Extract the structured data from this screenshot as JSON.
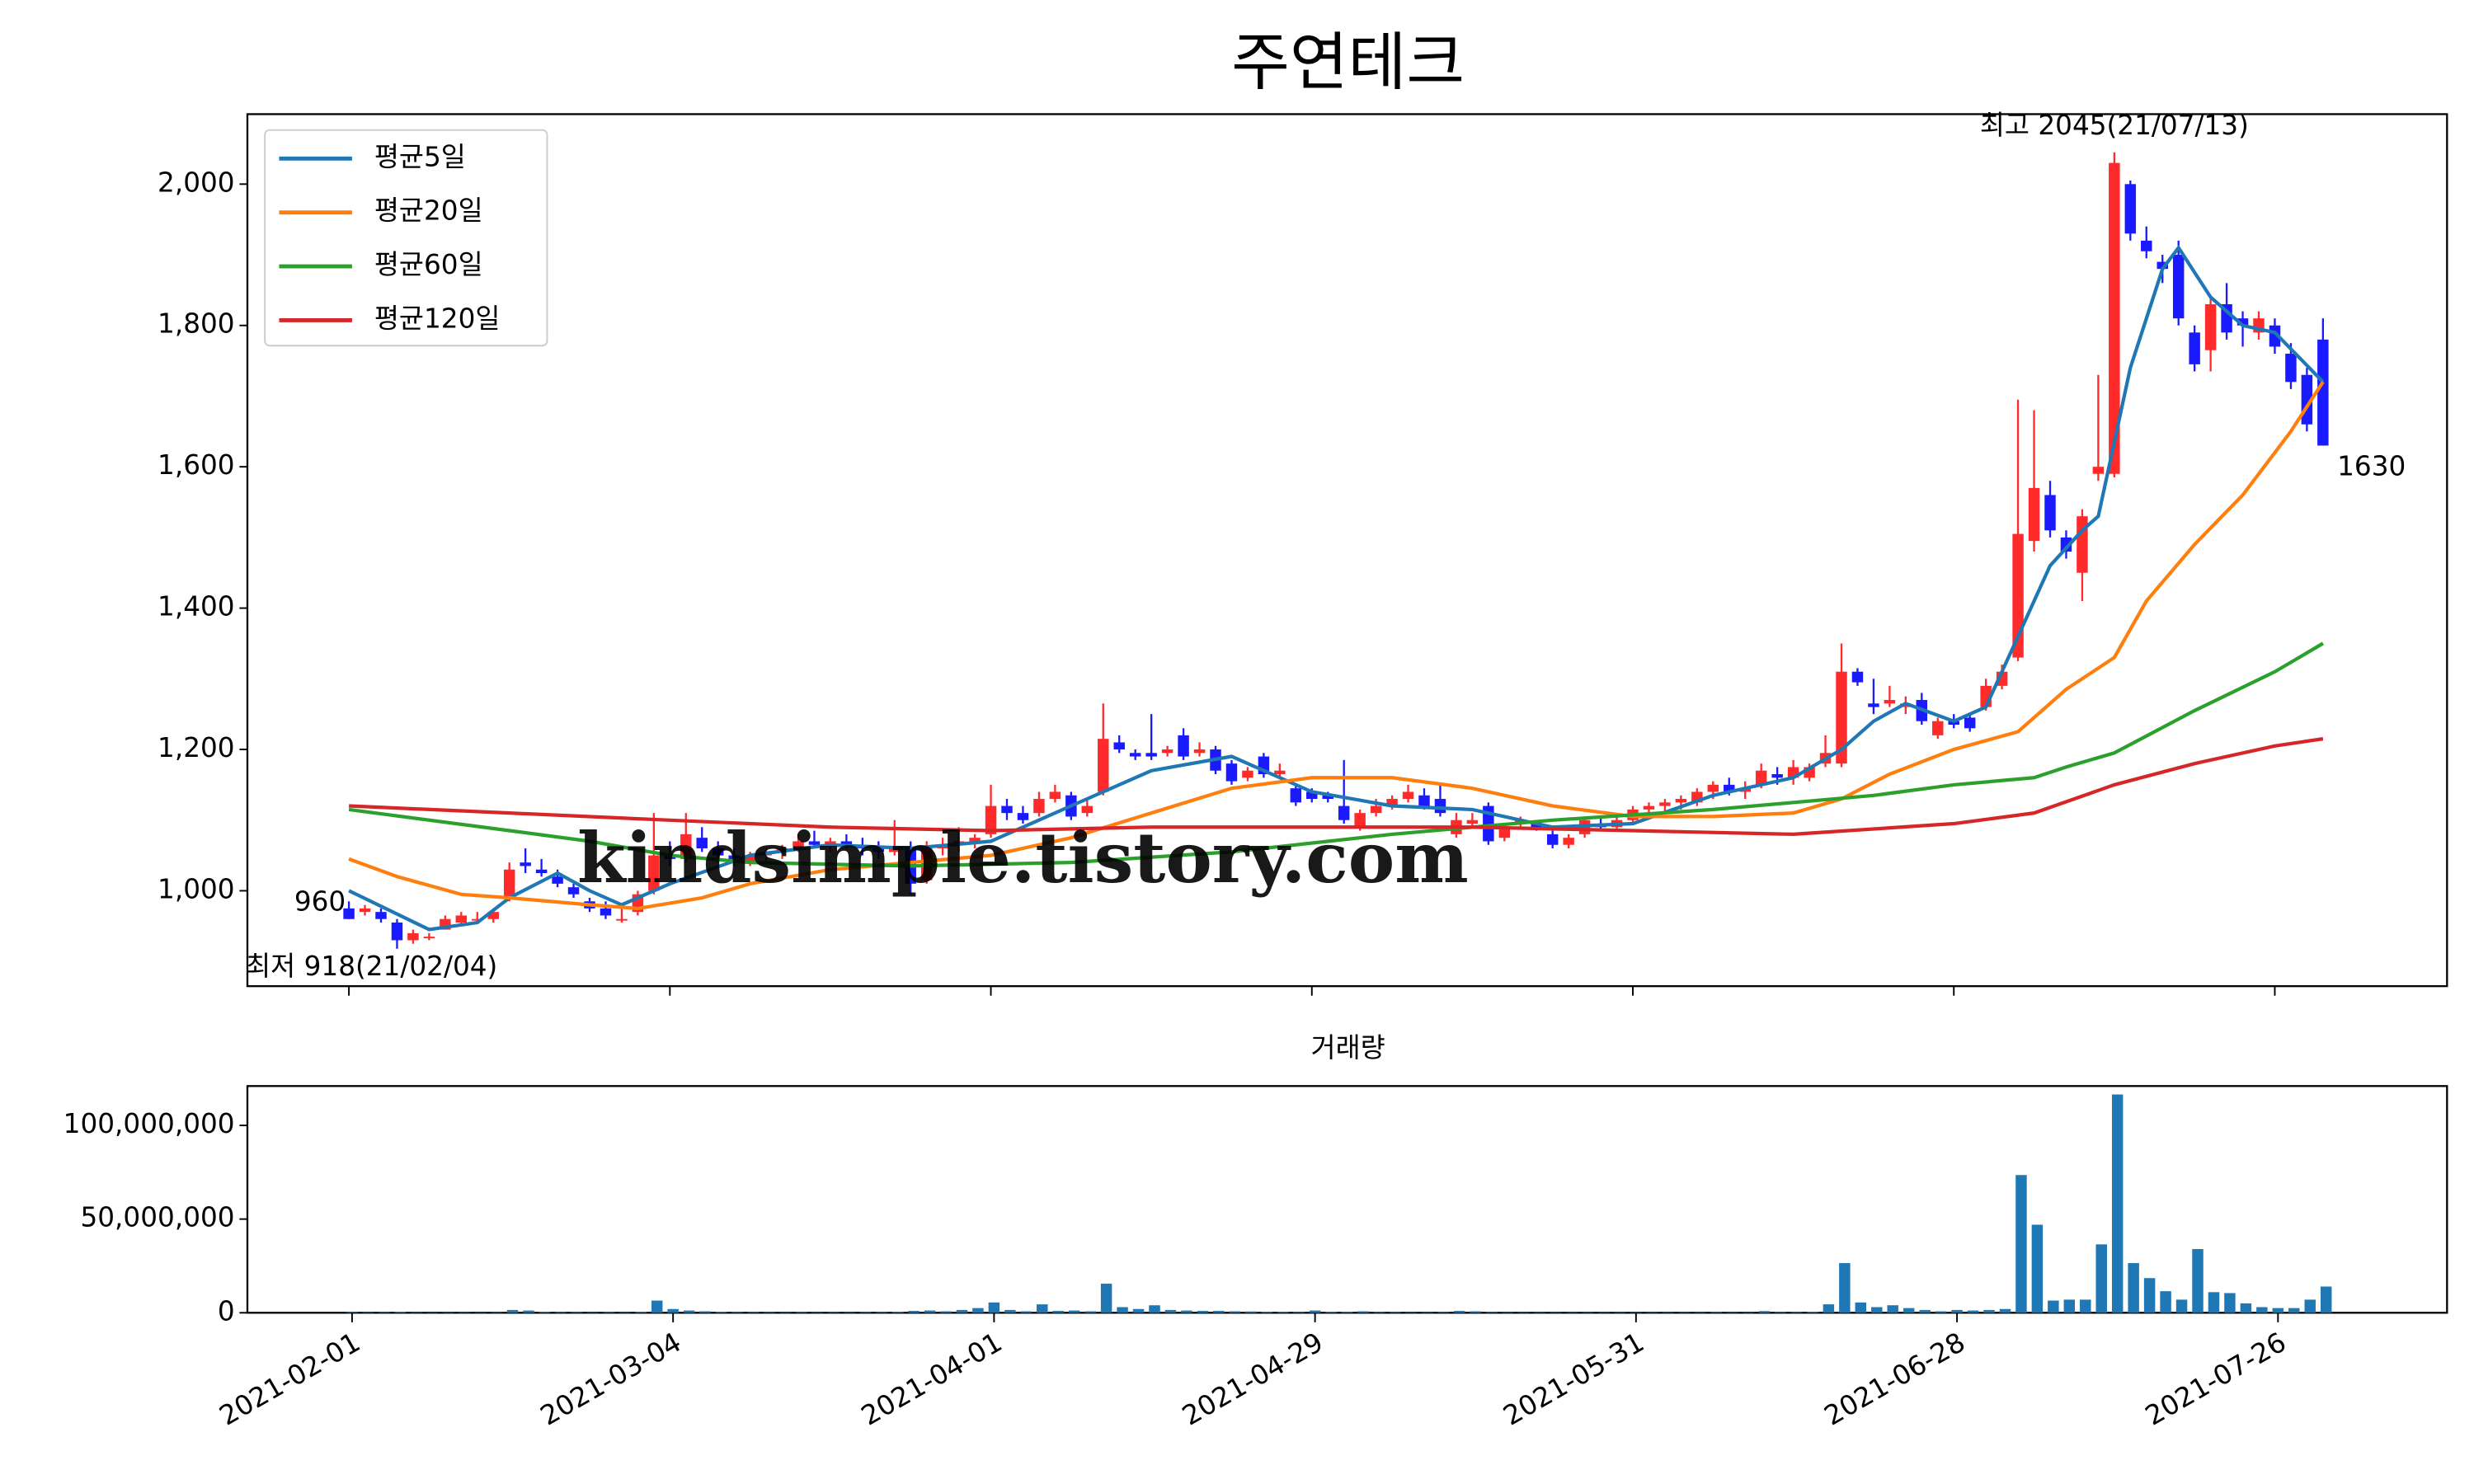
{
  "chart_data": [
    {
      "type": "candlestick",
      "title": "주연테크",
      "xticks": [
        0,
        20,
        40,
        60,
        80,
        100,
        120
      ],
      "ylim": [
        865,
        2099
      ],
      "yticks": [
        {
          "value": 1000,
          "label": "1,000"
        },
        {
          "value": 1200,
          "label": "1,200"
        },
        {
          "value": 1400,
          "label": "1,400"
        },
        {
          "value": 1600,
          "label": "1,600"
        },
        {
          "value": 1800,
          "label": "1,800"
        },
        {
          "value": 2000,
          "label": "2,000"
        }
      ],
      "up_color": "#ff2a2a",
      "down_color": "#1a1aff",
      "open": [
        975,
        970,
        970,
        955,
        930,
        935,
        945,
        955,
        960,
        960,
        990,
        1040,
        1030,
        1020,
        1005,
        985,
        975,
        960,
        970,
        1000,
        1050,
        1045,
        1075,
        1060,
        1050,
        1040,
        1050,
        1055,
        1060,
        1070,
        1065,
        1070,
        1065,
        1060,
        1055,
        1060,
        1015,
        1060,
        1065,
        1070,
        1080,
        1120,
        1110,
        1110,
        1130,
        1135,
        1110,
        1140,
        1210,
        1195,
        1195,
        1195,
        1220,
        1195,
        1200,
        1180,
        1160,
        1190,
        1165,
        1145,
        1140,
        1135,
        1120,
        1090,
        1110,
        1120,
        1130,
        1135,
        1130,
        1080,
        1095,
        1120,
        1075,
        1095,
        1095,
        1080,
        1065,
        1080,
        1095,
        1090,
        1100,
        1115,
        1120,
        1125,
        1125,
        1140,
        1150,
        1140,
        1150,
        1165,
        1160,
        1160,
        1180,
        1180,
        1310,
        1265,
        1265,
        1260,
        1270,
        1220,
        1240,
        1245,
        1260,
        1290,
        1330,
        1495,
        1560,
        1500,
        1450,
        1590,
        1590,
        2000,
        1920,
        1890,
        1900,
        1790,
        1765,
        1830,
        1810,
        1790,
        1800,
        1760,
        1730,
        1780
      ],
      "high": [
        985,
        980,
        975,
        960,
        945,
        940,
        965,
        970,
        970,
        975,
        1040,
        1060,
        1045,
        1030,
        1010,
        990,
        985,
        975,
        1000,
        1110,
        1070,
        1110,
        1090,
        1070,
        1060,
        1055,
        1060,
        1065,
        1080,
        1085,
        1075,
        1080,
        1075,
        1070,
        1100,
        1070,
        1070,
        1075,
        1090,
        1080,
        1150,
        1130,
        1120,
        1140,
        1150,
        1140,
        1130,
        1265,
        1220,
        1200,
        1250,
        1205,
        1230,
        1210,
        1205,
        1185,
        1175,
        1195,
        1180,
        1150,
        1145,
        1140,
        1185,
        1115,
        1130,
        1135,
        1150,
        1145,
        1150,
        1110,
        1110,
        1125,
        1095,
        1105,
        1100,
        1085,
        1080,
        1105,
        1105,
        1105,
        1120,
        1125,
        1130,
        1135,
        1145,
        1155,
        1160,
        1155,
        1180,
        1175,
        1185,
        1180,
        1220,
        1350,
        1315,
        1300,
        1290,
        1275,
        1280,
        1245,
        1250,
        1250,
        1300,
        1320,
        1695,
        1680,
        1580,
        1510,
        1540,
        1730,
        2045,
        2005,
        1940,
        1900,
        1920,
        1800,
        1840,
        1860,
        1820,
        1820,
        1810,
        1775,
        1740,
        1810
      ],
      "low": [
        960,
        965,
        955,
        918,
        925,
        930,
        945,
        950,
        955,
        955,
        985,
        1025,
        1020,
        1005,
        990,
        970,
        960,
        955,
        965,
        995,
        1035,
        1040,
        1055,
        1040,
        1035,
        1035,
        1040,
        1045,
        1055,
        1060,
        1055,
        1060,
        1050,
        1045,
        1050,
        995,
        1010,
        1050,
        1055,
        1060,
        1075,
        1100,
        1095,
        1105,
        1125,
        1100,
        1105,
        1135,
        1195,
        1185,
        1185,
        1190,
        1185,
        1190,
        1165,
        1150,
        1155,
        1160,
        1160,
        1120,
        1125,
        1125,
        1095,
        1085,
        1105,
        1115,
        1125,
        1115,
        1105,
        1075,
        1090,
        1065,
        1070,
        1090,
        1085,
        1060,
        1060,
        1075,
        1085,
        1085,
        1095,
        1105,
        1110,
        1115,
        1120,
        1130,
        1135,
        1130,
        1145,
        1150,
        1150,
        1155,
        1175,
        1175,
        1290,
        1250,
        1260,
        1250,
        1235,
        1215,
        1230,
        1225,
        1255,
        1285,
        1325,
        1480,
        1500,
        1470,
        1410,
        1580,
        1585,
        1920,
        1895,
        1860,
        1800,
        1735,
        1735,
        1780,
        1770,
        1780,
        1760,
        1710,
        1650,
        1630
      ],
      "close": [
        960,
        975,
        960,
        930,
        940,
        935,
        960,
        965,
        960,
        970,
        1030,
        1035,
        1025,
        1010,
        995,
        975,
        965,
        960,
        995,
        1050,
        1045,
        1080,
        1060,
        1050,
        1040,
        1050,
        1055,
        1060,
        1070,
        1065,
        1070,
        1065,
        1060,
        1055,
        1060,
        1010,
        1060,
        1065,
        1070,
        1075,
        1120,
        1110,
        1100,
        1130,
        1140,
        1105,
        1120,
        1215,
        1200,
        1190,
        1190,
        1200,
        1190,
        1200,
        1170,
        1155,
        1170,
        1165,
        1170,
        1125,
        1130,
        1130,
        1100,
        1110,
        1120,
        1130,
        1140,
        1120,
        1110,
        1100,
        1100,
        1070,
        1090,
        1100,
        1090,
        1065,
        1075,
        1100,
        1090,
        1100,
        1115,
        1120,
        1125,
        1130,
        1140,
        1150,
        1140,
        1145,
        1170,
        1160,
        1175,
        1175,
        1195,
        1310,
        1295,
        1260,
        1270,
        1265,
        1240,
        1240,
        1235,
        1230,
        1290,
        1310,
        1505,
        1570,
        1510,
        1480,
        1530,
        1600,
        2030,
        1930,
        1905,
        1880,
        1810,
        1745,
        1830,
        1790,
        1800,
        1810,
        1770,
        1720,
        1660,
        1630
      ],
      "series": [
        {
          "name": "평균5일",
          "color": "#1f77b4",
          "x": [
            0,
            5,
            8,
            10,
            13,
            15,
            17,
            20,
            25,
            30,
            35,
            40,
            45,
            50,
            55,
            60,
            65,
            70,
            75,
            80,
            85,
            90,
            93,
            95,
            97,
            100,
            102,
            104,
            106,
            108,
            109,
            111,
            113,
            114,
            116,
            118,
            120,
            123
          ],
          "values": [
            1000,
            945,
            955,
            990,
            1025,
            1000,
            980,
            1010,
            1050,
            1065,
            1060,
            1070,
            1120,
            1170,
            1190,
            1140,
            1120,
            1115,
            1090,
            1095,
            1135,
            1160,
            1200,
            1240,
            1265,
            1240,
            1260,
            1360,
            1460,
            1510,
            1530,
            1740,
            1880,
            1910,
            1840,
            1800,
            1790,
            1720
          ]
        },
        {
          "name": "평균20일",
          "color": "#ff7f0e",
          "x": [
            0,
            3,
            7,
            10,
            15,
            18,
            22,
            25,
            30,
            35,
            40,
            45,
            50,
            55,
            60,
            65,
            70,
            75,
            80,
            85,
            90,
            93,
            96,
            100,
            104,
            107,
            110,
            112,
            115,
            118,
            121,
            123
          ],
          "values": [
            1045,
            1020,
            995,
            990,
            980,
            975,
            990,
            1010,
            1030,
            1040,
            1050,
            1075,
            1110,
            1145,
            1160,
            1160,
            1145,
            1120,
            1105,
            1105,
            1110,
            1130,
            1165,
            1200,
            1225,
            1285,
            1330,
            1410,
            1490,
            1560,
            1650,
            1720
          ]
        },
        {
          "name": "평균60일",
          "color": "#2ca02c",
          "x": [
            0,
            10,
            15,
            20,
            25,
            35,
            45,
            55,
            65,
            75,
            85,
            95,
            100,
            105,
            107,
            110,
            115,
            120,
            123
          ],
          "values": [
            1115,
            1085,
            1070,
            1050,
            1040,
            1035,
            1040,
            1055,
            1080,
            1100,
            1115,
            1135,
            1150,
            1160,
            1175,
            1195,
            1255,
            1310,
            1350
          ]
        },
        {
          "name": "평균120일",
          "color": "#d62728",
          "x": [
            0,
            10,
            20,
            30,
            40,
            50,
            60,
            70,
            80,
            90,
            100,
            105,
            110,
            115,
            120,
            123
          ],
          "values": [
            1120,
            1110,
            1100,
            1090,
            1085,
            1090,
            1090,
            1090,
            1085,
            1080,
            1095,
            1110,
            1150,
            1180,
            1205,
            1215
          ]
        }
      ],
      "legend": "upper left",
      "annotations": [
        {
          "text": "최고 2045(21/07/13)",
          "color": "#ff0000"
        },
        {
          "text": "최저 918(21/02/04)",
          "color": "#0000ff"
        }
      ],
      "watermark": "kindsimple.tistory.com"
    },
    {
      "type": "bar",
      "title": "거래량",
      "color": "#1f77b4",
      "values": [
        300000,
        200000,
        250000,
        500000,
        200000,
        150000,
        200000,
        200000,
        150000,
        200000,
        1500000,
        1200000,
        400000,
        300000,
        300000,
        200000,
        300000,
        200000,
        500000,
        6500000,
        2000000,
        1200000,
        800000,
        500000,
        300000,
        300000,
        250000,
        200000,
        300000,
        200000,
        250000,
        200000,
        300000,
        300000,
        500000,
        1000000,
        1200000,
        800000,
        1500000,
        2500000,
        5500000,
        1500000,
        800000,
        4500000,
        1000000,
        1200000,
        800000,
        15500000,
        3000000,
        2000000,
        4000000,
        1500000,
        1200000,
        1000000,
        1000000,
        800000,
        700000,
        500000,
        400000,
        300000,
        1200000,
        500000,
        400000,
        800000,
        300000,
        300000,
        200000,
        200000,
        300000,
        1000000,
        800000,
        300000,
        200000,
        200000,
        200000,
        200000,
        200000,
        200000,
        200000,
        200000,
        200000,
        200000,
        200000,
        200000,
        200000,
        300000,
        200000,
        200000,
        900000,
        300000,
        300000,
        500000,
        4500000,
        26500000,
        5500000,
        3000000,
        4000000,
        2500000,
        1500000,
        800000,
        1500000,
        1200000,
        1500000,
        2000000,
        73500000,
        47000000,
        6500000,
        7000000,
        7000000,
        36500000,
        116500000,
        26500000,
        18500000,
        11500000,
        7000000,
        34000000,
        11000000,
        10500000,
        5000000,
        3000000,
        2500000,
        2500000,
        7000000,
        14000000
      ],
      "ylim": [
        0,
        121000000
      ],
      "yticks": [
        0,
        {
          "value": 50000000,
          "label": "50,000,000"
        },
        {
          "value": 100000000,
          "label": "100,000,000"
        }
      ],
      "xticks": [
        {
          "value": 0,
          "label": "2021-02-01"
        },
        {
          "value": 20,
          "label": "2021-03-04"
        },
        {
          "value": 40,
          "label": "2021-04-01"
        },
        {
          "value": 60,
          "label": "2021-04-29"
        },
        {
          "value": 80,
          "label": "2021-05-31"
        },
        {
          "value": 100,
          "label": "2021-06-28"
        },
        {
          "value": 120,
          "label": "2021-07-26"
        }
      ]
    }
  ]
}
